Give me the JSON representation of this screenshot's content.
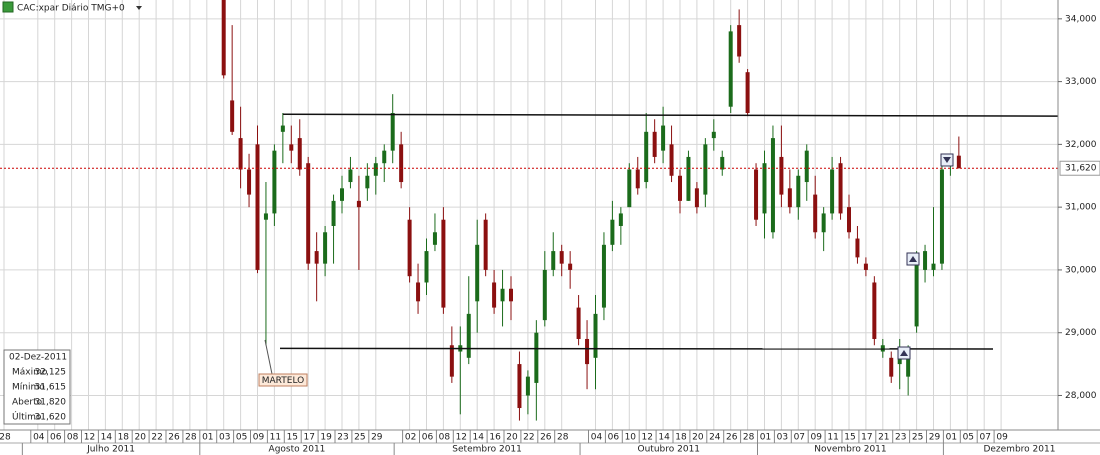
{
  "chart_data": {
    "type": "candlestick",
    "title": "CAC:xpar Diário TMG+0",
    "ylim": [
      27450,
      34300
    ],
    "yticks": [
      {
        "value": 28000,
        "label": "28,000"
      },
      {
        "value": 29000,
        "label": "29,000"
      },
      {
        "value": 30000,
        "label": "30,000"
      },
      {
        "value": 31000,
        "label": "31,000"
      },
      {
        "value": 32000,
        "label": "32,000"
      },
      {
        "value": 33000,
        "label": "33,000"
      },
      {
        "value": 34000,
        "label": "34,000"
      }
    ],
    "grid": true,
    "up_color": "#1b6b1b",
    "down_color": "#8b1010",
    "last_price": {
      "value": 31620,
      "label": "31,620"
    },
    "levels": [
      {
        "y1": 32480,
        "y2": 32450
      },
      {
        "y1": 28750,
        "y2": 28740
      }
    ],
    "annotation": "MARTELO",
    "months": [
      "Julho 2011",
      "Agosto 2011",
      "Setembro 2011",
      "Outubro 2011",
      "Novembro 2011",
      "Dezembro 2011"
    ],
    "x": [
      "28",
      null,
      null,
      null,
      "04",
      null,
      "06",
      null,
      "08",
      null,
      "12",
      null,
      "14",
      null,
      "18",
      null,
      "20",
      null,
      "22",
      null,
      "26",
      null,
      "28",
      null,
      "01",
      null,
      "03",
      null,
      "05",
      null,
      "09",
      null,
      "11",
      null,
      "15",
      null,
      "17",
      null,
      "19",
      null,
      "23",
      null,
      "25",
      null,
      "29",
      null,
      null,
      null,
      "02",
      null,
      "06",
      null,
      "08",
      null,
      "12",
      null,
      "14",
      null,
      "16",
      null,
      "20",
      null,
      "22",
      null,
      "26",
      null,
      "28",
      null,
      null,
      null,
      "04",
      null,
      "06",
      null,
      "10",
      null,
      "12",
      null,
      "14",
      null,
      "18",
      null,
      "20",
      null,
      "24",
      null,
      "26",
      null,
      "28",
      null,
      "01",
      null,
      "03",
      null,
      "07",
      null,
      "09",
      null,
      "11",
      null,
      "15",
      null,
      "17",
      null,
      "21",
      null,
      "23",
      null,
      "25",
      null,
      "29",
      null,
      "01",
      null,
      "05",
      null,
      "07",
      null,
      "09"
    ],
    "candles": [
      null,
      null,
      null,
      null,
      null,
      null,
      null,
      null,
      null,
      null,
      null,
      null,
      null,
      null,
      null,
      null,
      null,
      null,
      null,
      null,
      null,
      null,
      null,
      null,
      null,
      null,
      [
        34300,
        34400,
        33050,
        33100
      ],
      [
        32700,
        33900,
        32150,
        32200
      ],
      [
        32100,
        32600,
        31300,
        31600
      ],
      [
        31600,
        31850,
        31000,
        31200
      ],
      [
        32000,
        32300,
        29950,
        30000
      ],
      [
        30800,
        31400,
        28800,
        30900
      ],
      [
        30900,
        32000,
        30700,
        31900
      ],
      [
        32200,
        32500,
        31700,
        32300
      ],
      [
        32000,
        32300,
        31700,
        31900
      ],
      [
        32100,
        32400,
        31500,
        31600
      ],
      [
        31700,
        31800,
        30000,
        30100
      ],
      [
        30300,
        30600,
        29500,
        30100
      ],
      [
        30100,
        30700,
        29900,
        30600
      ],
      [
        30700,
        31200,
        30100,
        31100
      ],
      [
        31100,
        31500,
        30900,
        31300
      ],
      [
        31400,
        31800,
        31300,
        31600
      ],
      [
        31100,
        31500,
        30000,
        31000
      ],
      [
        31300,
        31700,
        31100,
        31500
      ],
      [
        31500,
        31800,
        31200,
        31700
      ],
      [
        31700,
        32000,
        31400,
        31900
      ],
      [
        31900,
        32800,
        31700,
        32500
      ],
      [
        32000,
        32200,
        31300,
        31400
      ],
      [
        30800,
        31000,
        29800,
        29900
      ],
      [
        29800,
        30100,
        29300,
        29500
      ],
      [
        29800,
        30500,
        29600,
        30300
      ],
      [
        30400,
        30900,
        30300,
        30600
      ],
      [
        30800,
        31000,
        29300,
        29400
      ],
      [
        28800,
        29100,
        28200,
        28300
      ],
      [
        28700,
        29100,
        27700,
        28800
      ],
      [
        28600,
        29900,
        28500,
        29300
      ],
      [
        29500,
        30800,
        29000,
        30400
      ],
      [
        30800,
        30900,
        29900,
        30000
      ],
      [
        29800,
        30000,
        29300,
        29400
      ],
      [
        29500,
        30000,
        29100,
        29700
      ],
      [
        29700,
        29900,
        29200,
        29500
      ],
      [
        28500,
        28700,
        27600,
        27800
      ],
      [
        28000,
        28400,
        27700,
        28300
      ],
      [
        28200,
        29200,
        27600,
        29000
      ],
      [
        29200,
        30300,
        29100,
        30000
      ],
      [
        30000,
        30600,
        29900,
        30300
      ],
      [
        30300,
        30400,
        29900,
        30100
      ],
      [
        30100,
        30300,
        29700,
        30000
      ],
      [
        29400,
        29600,
        28800,
        28900
      ],
      [
        28900,
        29200,
        28100,
        28500
      ],
      [
        28600,
        29600,
        28100,
        29300
      ],
      [
        29400,
        30600,
        29200,
        30400
      ],
      [
        30400,
        31100,
        30300,
        30800
      ],
      [
        30700,
        31000,
        30400,
        30900
      ],
      [
        31000,
        31700,
        31000,
        31600
      ],
      [
        31600,
        31800,
        31200,
        31300
      ],
      [
        31400,
        32500,
        31300,
        32200
      ],
      [
        32200,
        32400,
        31700,
        31800
      ],
      [
        31900,
        32600,
        31700,
        32300
      ],
      [
        32000,
        32300,
        31400,
        31500
      ],
      [
        31500,
        31600,
        30900,
        31100
      ],
      [
        31100,
        31900,
        31100,
        31800
      ],
      [
        31300,
        31400,
        30900,
        31000
      ],
      [
        31200,
        32100,
        31000,
        32000
      ],
      [
        32100,
        32400,
        31900,
        32200
      ],
      [
        31600,
        31900,
        31500,
        31800
      ],
      [
        32600,
        33900,
        32500,
        33800
      ],
      [
        33900,
        34150,
        33300,
        33400
      ],
      [
        33150,
        33200,
        32450,
        32500
      ],
      [
        31600,
        31700,
        30700,
        30800
      ],
      [
        30900,
        31900,
        30500,
        31700
      ],
      [
        30600,
        32300,
        30500,
        32100
      ],
      [
        31800,
        32300,
        31000,
        31200
      ],
      [
        31300,
        31600,
        30900,
        31000
      ],
      [
        31000,
        31600,
        30800,
        31500
      ],
      [
        31400,
        32000,
        31100,
        31900
      ],
      [
        31200,
        31500,
        30500,
        30600
      ],
      [
        30600,
        31000,
        30300,
        30900
      ],
      [
        30900,
        31800,
        30800,
        31600
      ],
      [
        31700,
        31800,
        30800,
        30900
      ],
      [
        31000,
        31200,
        30500,
        30600
      ],
      [
        30500,
        30700,
        30100,
        30200
      ],
      [
        30100,
        30200,
        29900,
        30000
      ],
      [
        29800,
        29900,
        28800,
        28900
      ],
      [
        28700,
        28900,
        28600,
        28800
      ],
      [
        28600,
        28700,
        28200,
        28300
      ],
      [
        28500,
        28900,
        28100,
        28600
      ],
      [
        28300,
        28800,
        28000,
        28700
      ],
      [
        29100,
        30300,
        29000,
        30200
      ],
      [
        30000,
        30400,
        29800,
        30300
      ],
      [
        30000,
        31000,
        29900,
        30100
      ],
      [
        30100,
        31700,
        30000,
        31600
      ],
      [
        31700,
        31800,
        31500,
        31750
      ],
      [
        31820,
        32125,
        31615,
        31620
      ],
      null,
      null,
      null,
      null,
      null
    ],
    "info_box": {
      "date": "02-Dez-2011",
      "rows": [
        [
          "Máximo",
          "32,125"
        ],
        [
          "Mínimo",
          "31,615"
        ],
        [
          "Aberto",
          "31,820"
        ],
        [
          "Último",
          "31,620"
        ]
      ]
    }
  }
}
